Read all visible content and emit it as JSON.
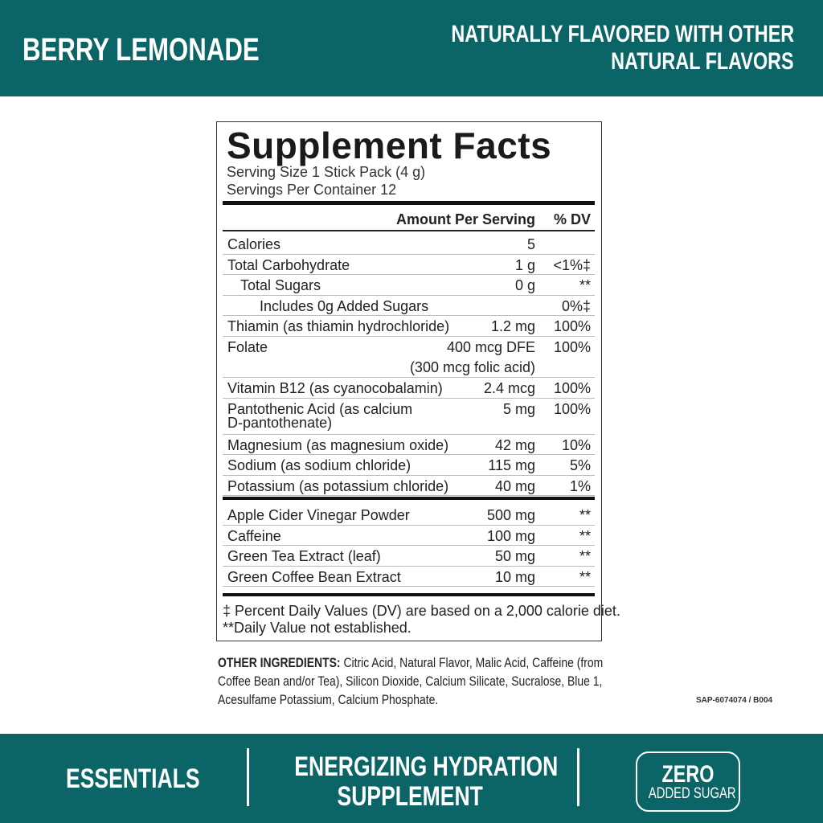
{
  "header": {
    "flavor": "BERRY LEMONADE",
    "flavor_note_line1": "NATURALLY FLAVORED WITH OTHER",
    "flavor_note_line2": "NATURAL FLAVORS"
  },
  "facts": {
    "title": "Supplement Facts",
    "serving_size": "Serving Size 1 Stick Pack (4 g)",
    "servings": "Servings Per Container 12",
    "col_amount": "Amount Per Serving",
    "col_dv": "% DV",
    "rows": [
      {
        "name": "Calories",
        "amount": "5",
        "dv": ""
      },
      {
        "name": "Total Carbohydrate",
        "amount": "1 g",
        "dv": "<1%‡"
      },
      {
        "name": "Total Sugars",
        "amount": "0 g",
        "dv": "**"
      },
      {
        "name": "Includes 0g Added Sugars",
        "amount": "",
        "dv": "0%‡"
      },
      {
        "name": "Thiamin (as thiamin hydrochloride)",
        "amount": "1.2 mg",
        "dv": "100%"
      },
      {
        "name": "Folate",
        "amount": "400 mcg DFE",
        "amount2": "(300 mcg folic acid)",
        "dv": "100%"
      },
      {
        "name": "Vitamin B12 (as cyanocobalamin)",
        "amount": "2.4 mcg",
        "dv": "100%"
      },
      {
        "name": "Pantothenic Acid (as calcium",
        "name2": "D-pantothenate)",
        "amount": "5 mg",
        "dv": "100%"
      },
      {
        "name": "Magnesium (as magnesium oxide)",
        "amount": "42 mg",
        "dv": "10%"
      },
      {
        "name": "Sodium (as sodium chloride)",
        "amount": "115 mg",
        "dv": "5%"
      },
      {
        "name": "Potassium (as potassium chloride)",
        "amount": "40 mg",
        "dv": "1%"
      }
    ],
    "other_rows": [
      {
        "name": "Apple Cider Vinegar Powder",
        "amount": "500 mg",
        "dv": "**"
      },
      {
        "name": "Caffeine",
        "amount": "100 mg",
        "dv": "**"
      },
      {
        "name": "Green Tea Extract (leaf)",
        "amount": "50 mg",
        "dv": "**"
      },
      {
        "name": "Green Coffee Bean Extract",
        "amount": "10 mg",
        "dv": "**"
      }
    ],
    "footnote1": "‡ Percent Daily Values (DV) are based on a 2,000 calorie diet.",
    "footnote2": "**Daily Value not established."
  },
  "other_ingredients": {
    "label": "OTHER INGREDIENTS:",
    "text": " Citric Acid, Natural Flavor, Malic Acid, Caffeine (from Coffee Bean and/or Tea), Silicon Dioxide, Calcium Silicate, Sucralose, Blue 1, Acesulfame Potassium, Calcium Phosphate."
  },
  "code": "SAP-6074074 / B004",
  "footer": {
    "line": "ESSENTIALS",
    "product_line1": "ENERGIZING HYDRATION",
    "product_line2": "SUPPLEMENT",
    "badge_big": "ZERO",
    "badge_small": "ADDED SUGAR"
  },
  "colors": {
    "brand_teal": "#0b6465"
  }
}
